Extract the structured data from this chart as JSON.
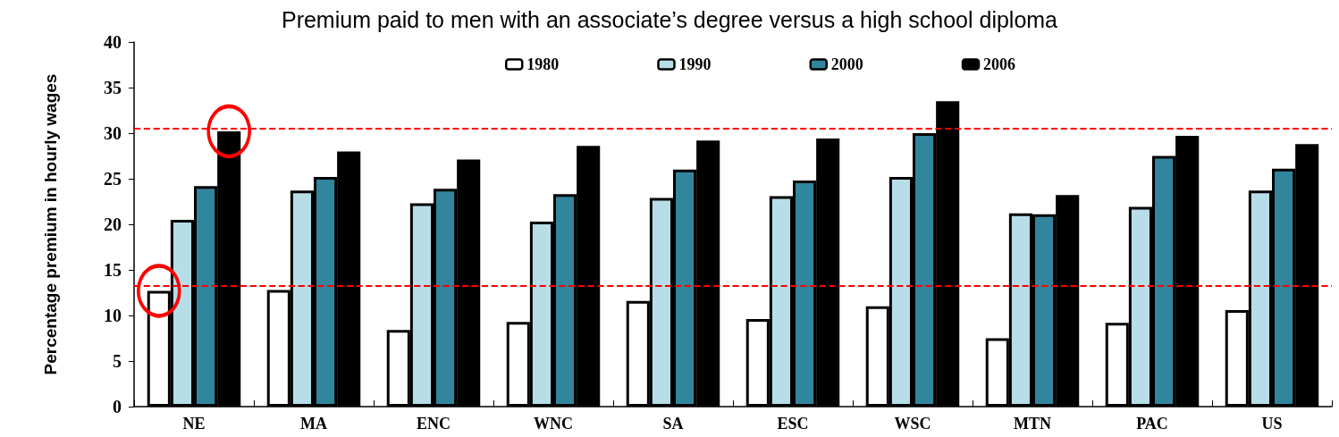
{
  "chart_data": {
    "type": "bar",
    "title": "Premium paid to men with an associate’s degree versus a high school diploma",
    "ylabel": "Percentage premium in hourly wages",
    "categories": [
      "NE",
      "MA",
      "ENC",
      "WNC",
      "SA",
      "ESC",
      "WSC",
      "MTN",
      "PAC",
      "US"
    ],
    "series": [
      {
        "name": "1980",
        "color": "#ffffff",
        "values": [
          12.7,
          12.8,
          8.4,
          9.3,
          11.6,
          9.6,
          11.0,
          7.5,
          9.2,
          10.6
        ]
      },
      {
        "name": "1990",
        "color": "#b7dde8",
        "values": [
          20.5,
          23.7,
          22.3,
          20.3,
          22.9,
          23.1,
          25.2,
          21.2,
          21.9,
          23.7
        ]
      },
      {
        "name": "2000",
        "color": "#31859c",
        "values": [
          24.2,
          25.2,
          23.9,
          23.3,
          26.0,
          24.8,
          30.0,
          21.1,
          27.5,
          26.1
        ]
      },
      {
        "name": "2006",
        "color": "#000000",
        "values": [
          30.2,
          28.0,
          27.1,
          28.6,
          29.2,
          29.4,
          33.5,
          23.2,
          29.7,
          28.8
        ]
      }
    ],
    "ylim": [
      0,
      40
    ],
    "yticks": [
      0,
      5,
      10,
      15,
      20,
      25,
      30,
      35,
      40
    ],
    "grid": false,
    "legend": "top",
    "ref_lines": [
      {
        "axis": "y",
        "value": 13.3,
        "color": "#ff0000",
        "line_style": "dashed"
      },
      {
        "axis": "y",
        "value": 30.5,
        "color": "#ff0000",
        "line_style": "dashed"
      }
    ]
  }
}
